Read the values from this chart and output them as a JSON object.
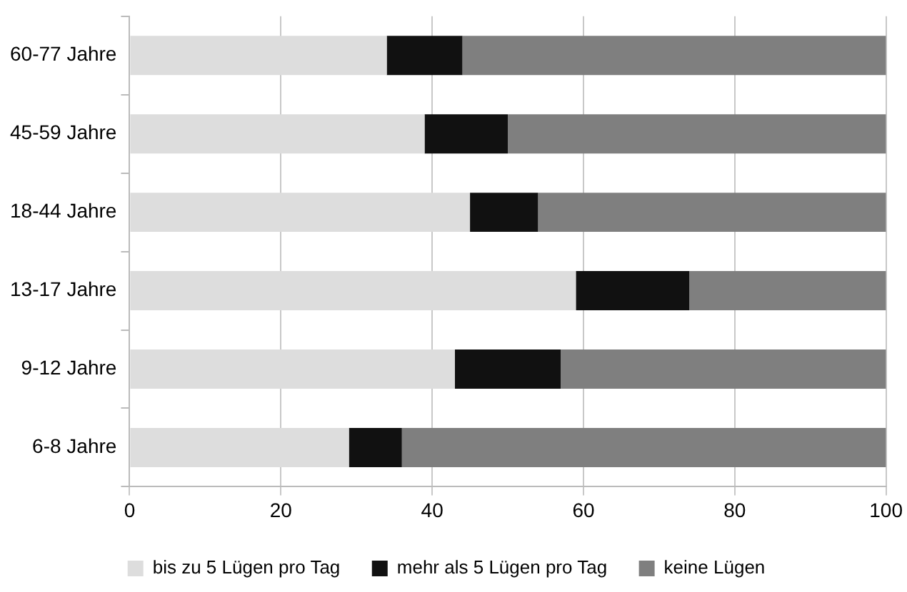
{
  "chart_data": {
    "type": "bar",
    "orientation": "horizontal",
    "stacked": true,
    "categories": [
      "60-77 Jahre",
      "45-59 Jahre",
      "18-44 Jahre",
      "13-17 Jahre",
      "9-12 Jahre",
      "6-8 Jahre"
    ],
    "series": [
      {
        "name": "bis zu 5 Lügen pro Tag",
        "color": "#dddddd",
        "values": [
          34,
          39,
          45,
          59,
          43,
          29
        ]
      },
      {
        "name": "mehr als 5 Lügen pro Tag",
        "color": "#111111",
        "values": [
          10,
          11,
          9,
          15,
          14,
          7
        ]
      },
      {
        "name": "keine Lügen",
        "color": "#7f7f7f",
        "values": [
          56,
          50,
          46,
          26,
          43,
          64
        ]
      }
    ],
    "xlim": [
      0,
      100
    ],
    "xticks": [
      0,
      20,
      40,
      60,
      80,
      100
    ],
    "grid": "x",
    "legend": "bottom"
  }
}
